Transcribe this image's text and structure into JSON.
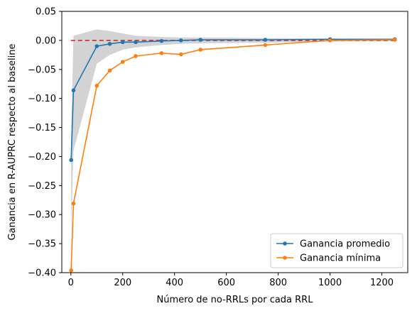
{
  "chart_data": {
    "type": "line",
    "xlabel": "Número de no-RRLs por cada RRL",
    "ylabel": "Ganancia en R-AUPRC respecto al baseline",
    "xlim": [
      -35,
      1300
    ],
    "ylim": [
      -0.4,
      0.05
    ],
    "x_ticks": [
      0,
      200,
      400,
      600,
      800,
      1000,
      1200
    ],
    "y_ticks": [
      0.05,
      0.0,
      -0.05,
      -0.1,
      -0.15,
      -0.2,
      -0.25,
      -0.3,
      -0.35,
      -0.4
    ],
    "grid": false,
    "legend_position": "lower-right",
    "baseline": {
      "y": 0.0,
      "color": "#d62728",
      "style": "dashed"
    },
    "band": {
      "color": "#d3d3d3",
      "x": [
        1,
        10,
        100,
        150,
        200,
        250,
        350,
        425,
        500,
        750,
        1000,
        1250
      ],
      "upper": [
        -0.17,
        0.008,
        0.019,
        0.016,
        0.012,
        0.008,
        0.006,
        0.005,
        0.005,
        0.004,
        0.003,
        0.002
      ],
      "lower": [
        -0.33,
        -0.19,
        -0.04,
        -0.025,
        -0.016,
        -0.012,
        -0.008,
        -0.006,
        -0.005,
        -0.004,
        -0.002,
        -0.001
      ]
    },
    "series": [
      {
        "name": "Ganancia promedio",
        "color": "#1f77b4",
        "x": [
          1,
          10,
          100,
          150,
          200,
          250,
          350,
          425,
          500,
          750,
          1000,
          1250
        ],
        "y": [
          -0.206,
          -0.086,
          -0.01,
          -0.006,
          -0.003,
          -0.003,
          -0.001,
          0.0,
          0.001,
          0.001,
          0.002,
          0.002
        ]
      },
      {
        "name": "Ganancia mínima",
        "color": "#ff7f0e",
        "x": [
          1,
          10,
          100,
          150,
          200,
          250,
          350,
          425,
          500,
          750,
          1000,
          1250
        ],
        "y": [
          -0.396,
          -0.281,
          -0.078,
          -0.052,
          -0.037,
          -0.027,
          -0.022,
          -0.024,
          -0.016,
          -0.008,
          0.0,
          0.001
        ]
      }
    ]
  }
}
